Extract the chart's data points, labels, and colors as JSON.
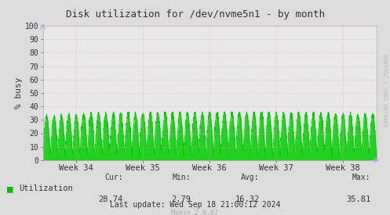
{
  "title": "Disk utilization for /dev/nvme5n1 - by month",
  "ylabel": "% busy",
  "ylim": [
    0,
    100
  ],
  "yticks": [
    0,
    10,
    20,
    30,
    40,
    50,
    60,
    70,
    80,
    90,
    100
  ],
  "xtick_labels": [
    "Week 34",
    "Week 35",
    "Week 36",
    "Week 37",
    "Week 38"
  ],
  "line_color": "#00cc00",
  "fill_color": "#00cc00",
  "bg_color": "#dcdcdc",
  "plot_bg_color": "#e8e8e8",
  "grid_color": "#ff9999",
  "title_color": "#333333",
  "legend_label": "Utilization",
  "legend_color": "#00bb00",
  "stats_cur": "28.74",
  "stats_min": "2.79",
  "stats_avg": "16.32",
  "stats_max": "35.81",
  "last_update": "Last update: Wed Sep 18 21:00:12 2024",
  "munin_version": "Munin 2.0.67",
  "rrdtool_label": "RRDTOOL / TOBI OETIKER"
}
